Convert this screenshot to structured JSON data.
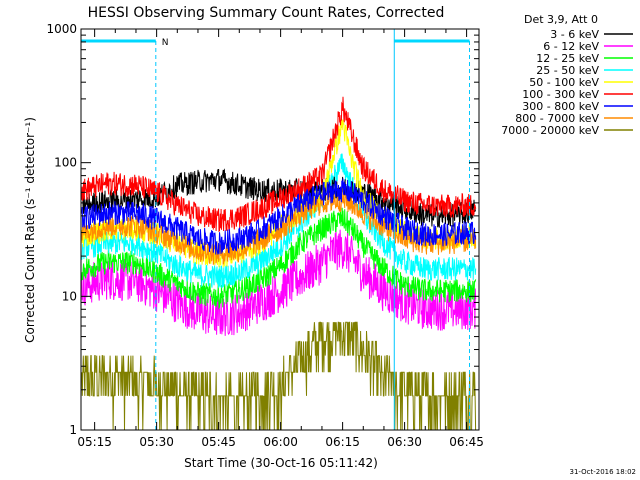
{
  "chart_data": {
    "type": "line",
    "title": "HESSI Observing Summary Count Rates, Corrected",
    "xlabel": "Start Time (30-Oct-16 05:11:42)",
    "ylabel": "Corrected Count Rate (s⁻¹ detector⁻¹)",
    "yscale": "log",
    "ylim": [
      1,
      1000
    ],
    "xlim_minutes": [
      311.7,
      408
    ],
    "x_ticks": [
      {
        "label": "05:15",
        "min": 315
      },
      {
        "label": "05:30",
        "min": 330
      },
      {
        "label": "05:45",
        "min": 345
      },
      {
        "label": "06:00",
        "min": 360
      },
      {
        "label": "06:15",
        "min": 375
      },
      {
        "label": "06:30",
        "min": 390
      },
      {
        "label": "06:45",
        "min": 405
      }
    ],
    "y_ticks": [
      {
        "label": "1",
        "v": 1
      },
      {
        "label": "10",
        "v": 10
      },
      {
        "label": "100",
        "v": 100
      },
      {
        "label": "1000",
        "v": 1000
      }
    ],
    "legend_title": "Det 3,9, Att 0",
    "legend_placement": "right",
    "series": [
      {
        "name": "3 - 6 keV",
        "color": "#000000",
        "values": [
          [
            312,
            48
          ],
          [
            320,
            52
          ],
          [
            330,
            55
          ],
          [
            335,
            68
          ],
          [
            340,
            72
          ],
          [
            345,
            75
          ],
          [
            350,
            68
          ],
          [
            355,
            62
          ],
          [
            360,
            62
          ],
          [
            365,
            62
          ],
          [
            370,
            62
          ],
          [
            375,
            65
          ],
          [
            380,
            60
          ],
          [
            385,
            52
          ],
          [
            390,
            45
          ],
          [
            395,
            40
          ],
          [
            400,
            40
          ],
          [
            405,
            42
          ],
          [
            407,
            45
          ]
        ]
      },
      {
        "name": "6 - 12 keV",
        "color": "#ff00ff",
        "values": [
          [
            312,
            12
          ],
          [
            318,
            13.5
          ],
          [
            325,
            13
          ],
          [
            330,
            11
          ],
          [
            335,
            9
          ],
          [
            340,
            7.5
          ],
          [
            345,
            7
          ],
          [
            350,
            7.5
          ],
          [
            355,
            9
          ],
          [
            360,
            11
          ],
          [
            365,
            14
          ],
          [
            370,
            18
          ],
          [
            373,
            22
          ],
          [
            375,
            23
          ],
          [
            377,
            20
          ],
          [
            380,
            15
          ],
          [
            385,
            11
          ],
          [
            390,
            9
          ],
          [
            395,
            8
          ],
          [
            400,
            8
          ],
          [
            405,
            8
          ],
          [
            407,
            8
          ]
        ]
      },
      {
        "name": "12 - 25 keV",
        "color": "#00ff00",
        "values": [
          [
            312,
            16
          ],
          [
            318,
            18
          ],
          [
            325,
            18
          ],
          [
            330,
            15
          ],
          [
            335,
            12.5
          ],
          [
            340,
            10.5
          ],
          [
            345,
            10
          ],
          [
            350,
            11
          ],
          [
            355,
            13
          ],
          [
            360,
            17
          ],
          [
            365,
            25
          ],
          [
            370,
            32
          ],
          [
            373,
            36
          ],
          [
            375,
            38
          ],
          [
            377,
            33
          ],
          [
            380,
            24
          ],
          [
            385,
            16
          ],
          [
            390,
            12
          ],
          [
            395,
            11
          ],
          [
            400,
            11
          ],
          [
            405,
            11
          ],
          [
            407,
            11
          ]
        ]
      },
      {
        "name": "25 - 50 keV",
        "color": "#00ffff",
        "values": [
          [
            312,
            23
          ],
          [
            318,
            25
          ],
          [
            325,
            25
          ],
          [
            330,
            21
          ],
          [
            335,
            17
          ],
          [
            340,
            14.5
          ],
          [
            345,
            14
          ],
          [
            350,
            15
          ],
          [
            355,
            18
          ],
          [
            360,
            24
          ],
          [
            365,
            35
          ],
          [
            370,
            55
          ],
          [
            373,
            80
          ],
          [
            375,
            100
          ],
          [
            377,
            70
          ],
          [
            380,
            40
          ],
          [
            385,
            25
          ],
          [
            390,
            18
          ],
          [
            395,
            16
          ],
          [
            400,
            16
          ],
          [
            405,
            16
          ],
          [
            407,
            16
          ]
        ]
      },
      {
        "name": "50 - 100 keV",
        "color": "#ffff00",
        "values": [
          [
            312,
            28
          ],
          [
            318,
            32
          ],
          [
            325,
            32
          ],
          [
            330,
            29
          ],
          [
            335,
            25
          ],
          [
            340,
            21
          ],
          [
            345,
            20
          ],
          [
            350,
            21
          ],
          [
            355,
            25
          ],
          [
            360,
            33
          ],
          [
            365,
            45
          ],
          [
            370,
            55
          ],
          [
            373,
            120
          ],
          [
            375,
            200
          ],
          [
            377,
            110
          ],
          [
            380,
            55
          ],
          [
            385,
            38
          ],
          [
            390,
            30
          ],
          [
            395,
            27
          ],
          [
            400,
            27
          ],
          [
            405,
            28
          ],
          [
            407,
            28
          ]
        ]
      },
      {
        "name": "100 - 300 keV",
        "color": "#ff0000",
        "values": [
          [
            312,
            62
          ],
          [
            318,
            70
          ],
          [
            325,
            68
          ],
          [
            330,
            60
          ],
          [
            335,
            48
          ],
          [
            340,
            40
          ],
          [
            345,
            37
          ],
          [
            350,
            39
          ],
          [
            355,
            45
          ],
          [
            360,
            54
          ],
          [
            365,
            65
          ],
          [
            370,
            80
          ],
          [
            373,
            160
          ],
          [
            375,
            260
          ],
          [
            377,
            170
          ],
          [
            380,
            90
          ],
          [
            385,
            62
          ],
          [
            390,
            52
          ],
          [
            395,
            48
          ],
          [
            400,
            47
          ],
          [
            405,
            48
          ],
          [
            407,
            48
          ]
        ]
      },
      {
        "name": "300 - 800 keV",
        "color": "#0000ff",
        "values": [
          [
            312,
            38
          ],
          [
            318,
            42
          ],
          [
            325,
            42
          ],
          [
            330,
            38
          ],
          [
            335,
            32
          ],
          [
            340,
            27
          ],
          [
            345,
            25
          ],
          [
            350,
            27
          ],
          [
            355,
            31
          ],
          [
            360,
            39
          ],
          [
            365,
            50
          ],
          [
            370,
            58
          ],
          [
            373,
            62
          ],
          [
            375,
            62
          ],
          [
            377,
            60
          ],
          [
            380,
            52
          ],
          [
            385,
            40
          ],
          [
            390,
            32
          ],
          [
            395,
            29
          ],
          [
            400,
            29
          ],
          [
            405,
            30
          ],
          [
            407,
            30
          ]
        ]
      },
      {
        "name": "800 - 7000 keV",
        "color": "#ff8c00",
        "values": [
          [
            312,
            30
          ],
          [
            318,
            34
          ],
          [
            325,
            34
          ],
          [
            330,
            30
          ],
          [
            335,
            26
          ],
          [
            340,
            22
          ],
          [
            345,
            21
          ],
          [
            350,
            22
          ],
          [
            355,
            26
          ],
          [
            360,
            32
          ],
          [
            365,
            42
          ],
          [
            370,
            50
          ],
          [
            373,
            52
          ],
          [
            375,
            53
          ],
          [
            377,
            50
          ],
          [
            380,
            42
          ],
          [
            385,
            33
          ],
          [
            390,
            27
          ],
          [
            395,
            25
          ],
          [
            400,
            25
          ],
          [
            405,
            26
          ],
          [
            407,
            26
          ]
        ]
      },
      {
        "name": "7000 - 20000 keV",
        "color": "#808000",
        "values": [
          [
            312,
            2.5
          ],
          [
            320,
            2.5
          ],
          [
            330,
            2.2
          ],
          [
            340,
            1.8
          ],
          [
            350,
            1.7
          ],
          [
            360,
            2.2
          ],
          [
            365,
            3.5
          ],
          [
            370,
            5
          ],
          [
            373,
            5.5
          ],
          [
            375,
            5.5
          ],
          [
            378,
            5
          ],
          [
            380,
            4
          ],
          [
            385,
            2.5
          ],
          [
            390,
            2
          ],
          [
            395,
            1.8
          ],
          [
            400,
            1.8
          ],
          [
            405,
            2
          ],
          [
            407,
            2
          ]
        ]
      }
    ],
    "segments": [
      {
        "start": 311.7,
        "end": 329.8
      },
      {
        "start": 387.5,
        "end": 405.7
      }
    ],
    "segment_flag": "N"
  },
  "footer": {
    "timestamp": "31-Oct-2016 18:02"
  }
}
